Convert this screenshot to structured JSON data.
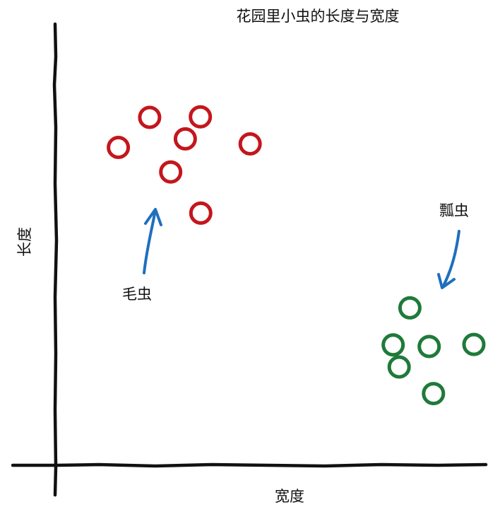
{
  "chart_data": {
    "type": "scatter",
    "title": "花园里小虫的长度与宽度",
    "xlabel": "宽度",
    "ylabel": "长度",
    "grid": false,
    "legend": "none",
    "series": [
      {
        "color": "#c4161c",
        "points": [
          {
            "x": 1.44,
            "y": 6.34
          },
          {
            "x": 2.17,
            "y": 6.94
          },
          {
            "x": 3.35,
            "y": 6.95
          },
          {
            "x": 3.0,
            "y": 6.51
          },
          {
            "x": 4.51,
            "y": 6.41
          },
          {
            "x": 2.66,
            "y": 5.85
          },
          {
            "x": 3.36,
            "y": 5.03
          }
        ]
      },
      {
        "color": "#1f7a3a",
        "points": [
          {
            "x": 8.23,
            "y": 3.14
          },
          {
            "x": 7.84,
            "y": 2.4
          },
          {
            "x": 8.68,
            "y": 2.37
          },
          {
            "x": 9.72,
            "y": 2.41
          },
          {
            "x": 7.98,
            "y": 1.96
          },
          {
            "x": 8.78,
            "y": 1.43
          }
        ]
      }
    ],
    "annotations": [
      {
        "text": "毛虫",
        "arrow_color": "#1f6fbf"
      },
      {
        "text": "瓢虫",
        "arrow_color": "#1f6fbf"
      }
    ]
  }
}
